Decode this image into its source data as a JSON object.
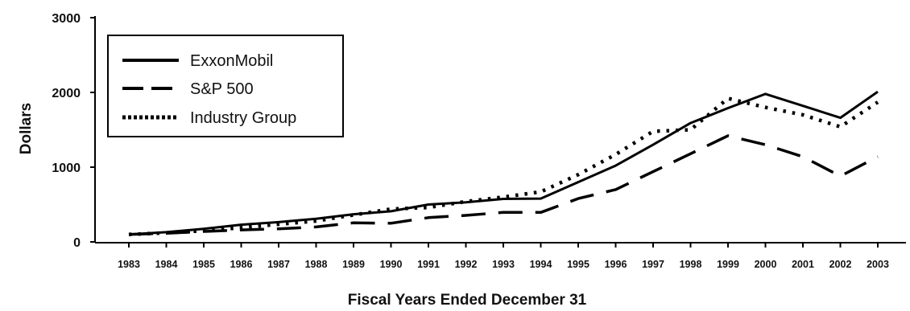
{
  "chart_data": {
    "type": "line",
    "title": "",
    "xlabel": "Fiscal Years Ended December 31",
    "ylabel": "Dollars",
    "ylim": [
      0,
      3000
    ],
    "yticks": [
      0,
      1000,
      2000,
      3000
    ],
    "grid": false,
    "legend_position": "top-left",
    "x": [
      "1983",
      "1984",
      "1985",
      "1986",
      "1987",
      "1988",
      "1989",
      "1990",
      "1991",
      "1992",
      "1993",
      "1994",
      "1995",
      "1996",
      "1997",
      "1998",
      "1999",
      "2000",
      "2001",
      "2002",
      "2003"
    ],
    "series": [
      {
        "name": "ExxonMobil",
        "style": "solid",
        "color": "#000000",
        "values": [
          100,
          130,
          175,
          230,
          265,
          310,
          370,
          410,
          500,
          530,
          575,
          580,
          800,
          1020,
          1300,
          1590,
          1790,
          1980,
          1820,
          1660,
          2010
        ]
      },
      {
        "name": "S&P 500",
        "style": "dashed",
        "color": "#000000",
        "values": [
          100,
          115,
          140,
          160,
          175,
          200,
          255,
          250,
          325,
          355,
          395,
          395,
          580,
          700,
          940,
          1180,
          1420,
          1300,
          1140,
          880,
          1140
        ]
      },
      {
        "name": "Industry Group",
        "style": "dotted",
        "color": "#000000",
        "values": [
          100,
          120,
          150,
          190,
          235,
          280,
          360,
          440,
          460,
          540,
          600,
          670,
          900,
          1170,
          1480,
          1500,
          1920,
          1800,
          1700,
          1540,
          1870
        ]
      }
    ]
  }
}
